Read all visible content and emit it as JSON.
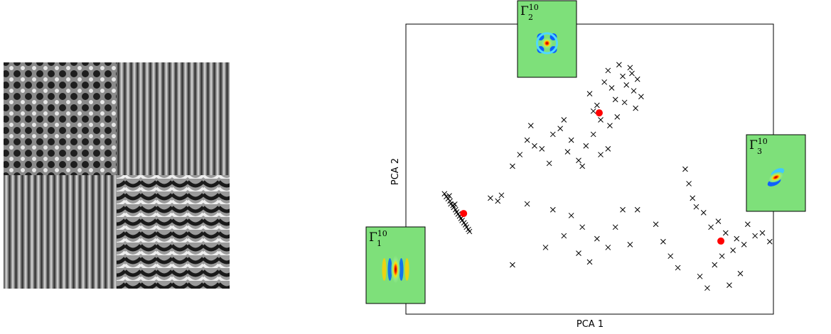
{
  "chart_data": {
    "type": "scatter",
    "xlabel": "PCA 1",
    "ylabel": "PCA 2",
    "xlim": [
      0,
      100
    ],
    "ylim": [
      0,
      100
    ],
    "series": [
      {
        "color": "#000000",
        "marker": "x",
        "x": [
          10.5,
          11,
          11.5,
          12,
          12.2,
          12.8,
          13,
          13.5,
          13.8,
          14.2,
          14.6,
          15,
          15.3,
          15.8,
          16.2,
          16.5,
          17,
          17.3,
          11.8,
          13.3,
          50,
          52,
          54,
          55,
          56,
          57,
          58,
          59,
          60,
          61,
          62,
          63,
          64,
          51,
          53,
          57.5,
          59.5,
          61.5,
          55.5,
          62.5,
          29,
          31,
          33,
          35,
          37,
          39,
          40,
          42,
          44,
          45,
          47,
          49,
          51,
          53,
          55,
          34,
          43,
          48,
          23,
          25,
          26,
          29,
          33,
          38,
          40,
          43,
          45,
          47,
          48,
          50,
          52,
          55,
          57,
          59,
          61,
          63,
          68,
          70,
          72,
          74,
          76,
          77,
          78,
          79,
          80,
          81,
          82,
          83,
          84,
          85,
          86,
          87,
          88,
          89,
          90,
          91,
          92,
          93,
          95,
          97,
          99
        ],
        "values": [
          41.5,
          40.5,
          39.8,
          39,
          38,
          37.5,
          36.8,
          36,
          35.2,
          34.5,
          33.8,
          33,
          32.3,
          31.5,
          30.8,
          30,
          29.2,
          28.5,
          40.8,
          37.9,
          76,
          72,
          80,
          84,
          78,
          74,
          86,
          82,
          79,
          85,
          77,
          81,
          75,
          70,
          67,
          68,
          73,
          83,
          65,
          71,
          51,
          55,
          60,
          58,
          57,
          52,
          62,
          64,
          56,
          60,
          53,
          58,
          62,
          55,
          57,
          65,
          67,
          51,
          40,
          39,
          41,
          17,
          38,
          23,
          36,
          27,
          34,
          21,
          30,
          18,
          26,
          23,
          30,
          36,
          24,
          36,
          31,
          25,
          20,
          16,
          50,
          45,
          40,
          37,
          13,
          35,
          9,
          30,
          17,
          32,
          20,
          28,
          10,
          22,
          26,
          14,
          24,
          31,
          27,
          28,
          25
        ]
      },
      {
        "color": "#ff0000",
        "marker": "o",
        "x": [
          15.7,
          52.6,
          85.7
        ],
        "values": [
          34.7,
          69.4,
          25.2
        ]
      }
    ],
    "insets": [
      {
        "symbol": "Γ",
        "subscript": "1",
        "superscript": "10"
      },
      {
        "symbol": "Γ",
        "subscript": "2",
        "superscript": "10"
      },
      {
        "symbol": "Γ",
        "subscript": "3",
        "superscript": "10"
      }
    ]
  }
}
